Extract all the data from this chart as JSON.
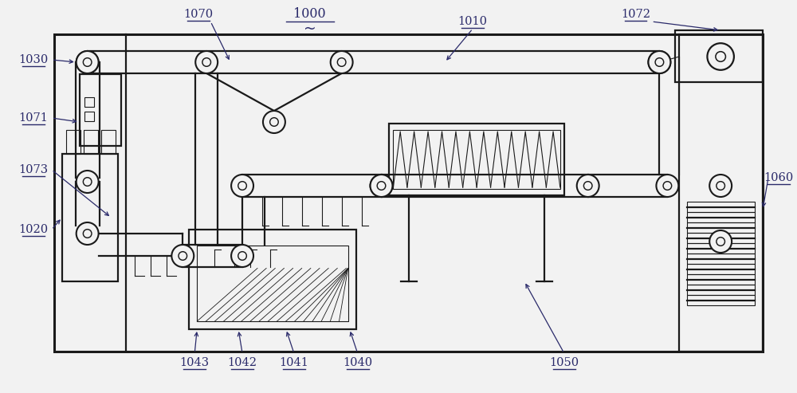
{
  "bg_color": "#f2f2f2",
  "line_color": "#1a1a1a",
  "label_color": "#2a2a6a",
  "fig_width": 10.0,
  "fig_height": 4.93,
  "roller_r": 0.022,
  "lw_main": 1.6,
  "lw_thin": 0.8
}
